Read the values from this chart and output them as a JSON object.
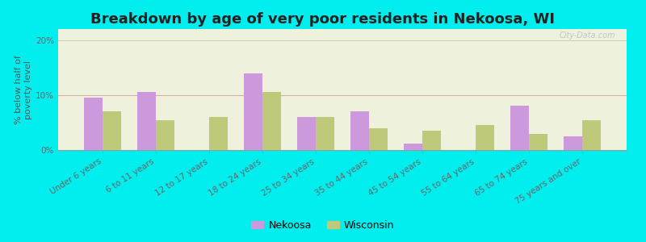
{
  "title": "Breakdown by age of very poor residents in Nekoosa, WI",
  "ylabel": "% below half of\npoverty level",
  "categories": [
    "Under 6 years",
    "6 to 11 years",
    "12 to 17 years",
    "18 to 24 years",
    "25 to 34 years",
    "35 to 44 years",
    "45 to 54 years",
    "55 to 64 years",
    "65 to 74 years",
    "75 years and over"
  ],
  "nekoosa": [
    9.5,
    10.5,
    0,
    14.0,
    6.0,
    7.0,
    1.2,
    0,
    8.0,
    2.5
  ],
  "wisconsin": [
    7.0,
    5.5,
    6.0,
    10.5,
    6.0,
    4.0,
    3.5,
    4.5,
    3.0,
    5.5
  ],
  "nekoosa_color": "#cc99dd",
  "wisconsin_color": "#bec97a",
  "plot_bg_color": "#eef2dc",
  "outer_bg": "#00eeee",
  "ylim": [
    0,
    22
  ],
  "yticks": [
    0,
    10,
    20
  ],
  "ytick_labels": [
    "0%",
    "10%",
    "20%"
  ],
  "bar_width": 0.35,
  "title_fontsize": 13,
  "axis_label_fontsize": 8,
  "tick_fontsize": 7.5,
  "legend_fontsize": 9
}
